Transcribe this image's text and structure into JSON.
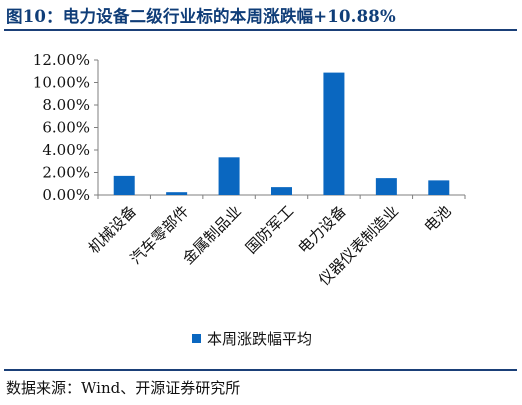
{
  "header": {
    "title": "图10：电力设备二级行业标的本周涨跌幅+10.88%"
  },
  "footer": {
    "source": "数据来源：Wind、开源证券研究所"
  },
  "colors": {
    "bar": "#0a67c0",
    "title": "#0f3d78",
    "rule": "#1a3f78"
  },
  "chart_data": {
    "type": "bar",
    "categories": [
      "机械设备",
      "汽车零部件",
      "金属制品业",
      "国防军工",
      "电力设备",
      "仪器仪表制造业",
      "电池"
    ],
    "series": [
      {
        "name": "本周涨跌幅平均",
        "values": [
          1.7,
          0.25,
          3.35,
          0.7,
          10.88,
          1.5,
          1.3
        ]
      }
    ],
    "y_ticks": [
      "0.00%",
      "2.00%",
      "4.00%",
      "6.00%",
      "8.00%",
      "10.00%",
      "12.00%"
    ],
    "ylim": [
      0,
      12
    ],
    "y_unit": "%",
    "grid": false,
    "legend_position": "bottom"
  }
}
